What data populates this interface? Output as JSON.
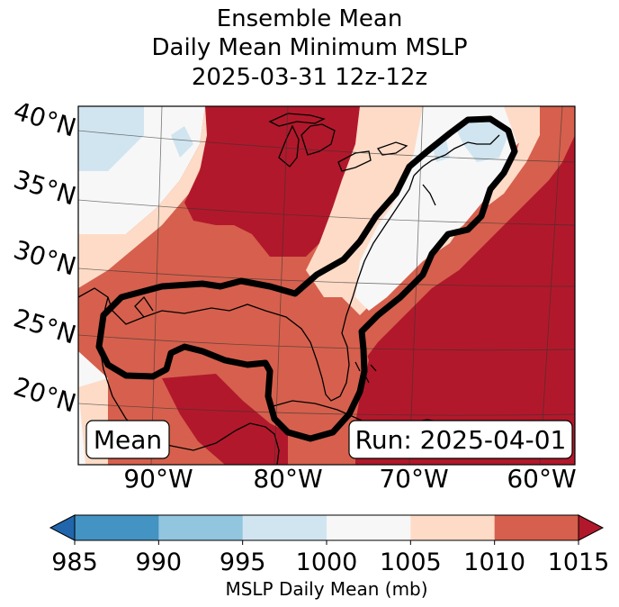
{
  "title": {
    "line1": "Ensemble Mean",
    "line2": "Daily Mean Minimum MSLP",
    "line3": "2025-03-31 12z-12z"
  },
  "map": {
    "lat_labels": [
      "40°N",
      "35°N",
      "30°N",
      "25°N",
      "20°N"
    ],
    "lon_labels": [
      "90°W",
      "80°W",
      "70°W",
      "60°W"
    ],
    "panel_label": "Mean",
    "run_label": "Run: 2025-04-01"
  },
  "chart_data": {
    "type": "heatmap",
    "title": "Ensemble Mean Daily Mean Minimum MSLP 2025-03-31 12z-12z",
    "variable": "MSLP Daily Mean",
    "units": "mb",
    "region": "Eastern United States / Gulf of Mexico / Western Atlantic",
    "lat_range": [
      18,
      41
    ],
    "lon_range": [
      -96,
      -60
    ],
    "contour_levels": [
      985,
      990,
      995,
      1000,
      1005,
      1010,
      1015
    ],
    "colorbar_extend": "both",
    "colorbar_colors": [
      "#2166ac",
      "#4393c3",
      "#92c5de",
      "#d1e5f0",
      "#f7f7f7",
      "#fddbc7",
      "#d6604d",
      "#b2182b"
    ],
    "highlight_contour": "black outline along the East Coast from the Gulf of Mexico to New England"
  },
  "colorbar": {
    "ticks": [
      "985",
      "990",
      "995",
      "1000",
      "1005",
      "1010",
      "1015"
    ],
    "label": "MSLP Daily Mean (mb)",
    "colors": [
      "#4393c3",
      "#92c5de",
      "#d1e5f0",
      "#f7f7f7",
      "#fddbc7",
      "#d6604d"
    ],
    "under_color": "#2166ac",
    "over_color": "#b2182b"
  }
}
